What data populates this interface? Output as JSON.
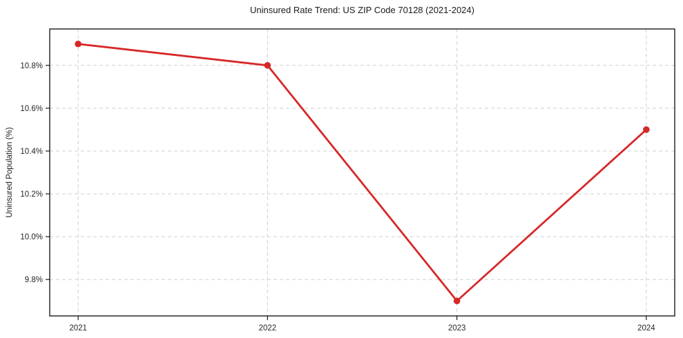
{
  "chart_data": {
    "type": "line",
    "title": "Uninsured Rate Trend: US ZIP Code 70128 (2021-2024)",
    "xlabel": "",
    "ylabel": "Uninsured Population (%)",
    "x": [
      2021,
      2022,
      2023,
      2024
    ],
    "values": [
      10.9,
      10.8,
      9.7,
      10.5
    ],
    "xtick_labels": [
      "2021",
      "2022",
      "2023",
      "2024"
    ],
    "yticks": [
      9.8,
      10.0,
      10.2,
      10.4,
      10.6,
      10.8
    ],
    "ytick_labels": [
      "9.8%",
      "10.0%",
      "10.2%",
      "10.4%",
      "10.6%",
      "10.8%"
    ],
    "xlim": [
      2020.85,
      2024.15
    ],
    "ylim": [
      9.63,
      10.97
    ],
    "grid": "dashed-both-axes",
    "legend": "none",
    "line_color": "#d62728",
    "marker": "circle",
    "grid_color": "#cfcfcf",
    "spine_color": "#1a1a1a",
    "tick_label_color": "#262626"
  }
}
